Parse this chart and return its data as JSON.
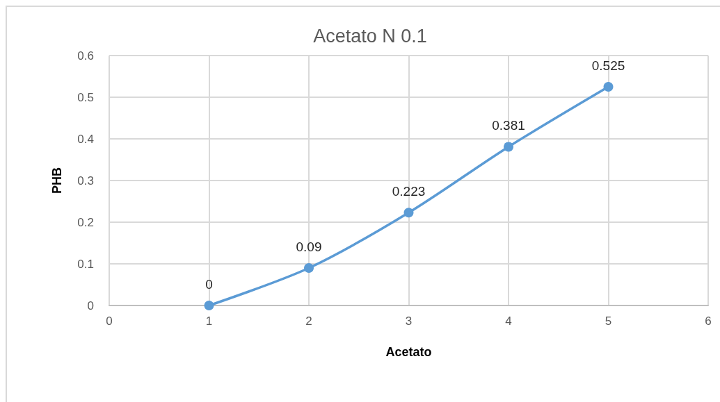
{
  "chart_data": {
    "type": "line",
    "title": "Acetato N 0.1",
    "xlabel": "Acetato",
    "ylabel": "PHB",
    "x": [
      1,
      2,
      3,
      4,
      5
    ],
    "series": [
      {
        "color": "#5b9bd5",
        "values": [
          0,
          0.09,
          0.223,
          0.381,
          0.525
        ]
      }
    ],
    "xlim": [
      0,
      6
    ],
    "xticks": [
      0,
      1,
      2,
      3,
      4,
      5,
      6
    ],
    "ylim": [
      0,
      0.6
    ],
    "yticks": [
      0,
      0.1,
      0.2,
      0.3,
      0.4,
      0.5,
      0.6
    ],
    "grid": true,
    "marker": "circle",
    "line_style": "solid",
    "data_labels": true
  }
}
